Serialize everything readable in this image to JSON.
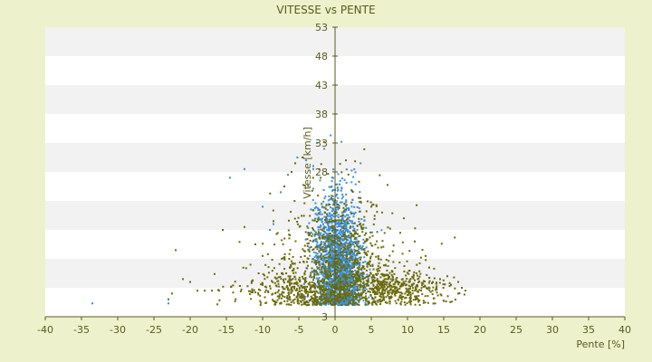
{
  "chart_data": {
    "type": "scatter",
    "title": "VITESSE vs PENTE",
    "xlabel": "Pente [%]",
    "ylabel": "Vitesse [km/h]",
    "xlim": [
      -40,
      40
    ],
    "ylim": [
      3,
      53
    ],
    "x_ticks": [
      -40,
      -35,
      -30,
      -25,
      -20,
      -15,
      -10,
      -5,
      0,
      5,
      10,
      15,
      20,
      25,
      30,
      35,
      40
    ],
    "y_ticks": [
      3,
      8,
      13,
      18,
      23,
      28,
      33,
      38,
      43,
      48,
      53
    ],
    "y_tick_labels": [
      "3",
      "",
      "",
      "",
      "",
      "28",
      "33",
      "38",
      "43",
      "48",
      "53"
    ],
    "grid": "horizontal bands",
    "colors": {
      "background": "#eef2cc",
      "plot_band_light": "#ffffff",
      "plot_band_dark": "#f2f2f2",
      "axis": "#5a5a1e",
      "text": "#5a5a1e",
      "series_1": "#3a8fd8",
      "series_2": "#6b6b0c"
    },
    "series": [
      {
        "color": "#3a8fd8",
        "clusters": [
          {
            "cx": 0.3,
            "cy": 13.5,
            "sx": 1.6,
            "sy": 5.5,
            "n": 1400
          },
          {
            "cx": 1.0,
            "cy": 8.5,
            "sx": 1.5,
            "sy": 3.0,
            "n": 500
          }
        ],
        "points": [
          [
            -33.5,
            5.3
          ],
          [
            -23,
            5.3
          ],
          [
            -14.5,
            27.0
          ],
          [
            -12.5,
            28.5
          ],
          [
            -5.2,
            30.5
          ],
          [
            -4.0,
            30.0
          ],
          [
            -2.5,
            33.0
          ],
          [
            -1.5,
            32.0
          ],
          [
            -6.5,
            27.5
          ],
          [
            -8.5,
            19.0
          ],
          [
            -10,
            22.0
          ],
          [
            -9,
            18.0
          ],
          [
            -7.5,
            24.5
          ],
          [
            -3,
            28.5
          ]
        ]
      },
      {
        "color": "#6b6b0c",
        "clusters": [
          {
            "cx": 0.0,
            "cy": 13.5,
            "sx": 3.5,
            "sy": 6.0,
            "n": 700
          },
          {
            "cx": 7.0,
            "cy": 8.0,
            "sx": 4.0,
            "sy": 1.6,
            "n": 500
          },
          {
            "cx": -5.0,
            "cy": 7.5,
            "sx": 4.5,
            "sy": 1.8,
            "n": 350
          },
          {
            "cx": 1.5,
            "cy": 9.5,
            "sx": 6.0,
            "sy": 3.5,
            "n": 250
          }
        ],
        "points": [
          [
            -21,
            9.5
          ],
          [
            -20,
            9.0
          ],
          [
            -19,
            7.5
          ],
          [
            -18,
            7.5
          ],
          [
            -17,
            7.5
          ],
          [
            -16,
            7.5
          ],
          [
            -22,
            14.5
          ],
          [
            -15.5,
            18.0
          ],
          [
            -12.5,
            18.5
          ],
          [
            -11,
            15.5
          ],
          [
            -10,
            13.5
          ],
          [
            -8.5,
            19.5
          ],
          [
            -7,
            25.5
          ],
          [
            -6,
            28.0
          ],
          [
            -5.5,
            29.5
          ],
          [
            -4.5,
            30.5
          ],
          [
            1.5,
            30.0
          ],
          [
            3.5,
            23.5
          ],
          [
            5,
            22.0
          ],
          [
            6.5,
            21.0
          ],
          [
            9.5,
            20.0
          ],
          [
            9,
            17.5
          ],
          [
            11,
            16.0
          ],
          [
            12.5,
            13.5
          ],
          [
            13,
            11.5
          ],
          [
            14.5,
            9.5
          ],
          [
            15.5,
            10.0
          ],
          [
            16,
            8.5
          ],
          [
            17,
            7.0
          ],
          [
            17.5,
            8.0
          ],
          [
            18,
            7.5
          ],
          [
            17,
            9.0
          ],
          [
            14,
            8.0
          ],
          [
            -23,
            6.0
          ],
          [
            -22.5,
            7.0
          ]
        ]
      }
    ]
  }
}
